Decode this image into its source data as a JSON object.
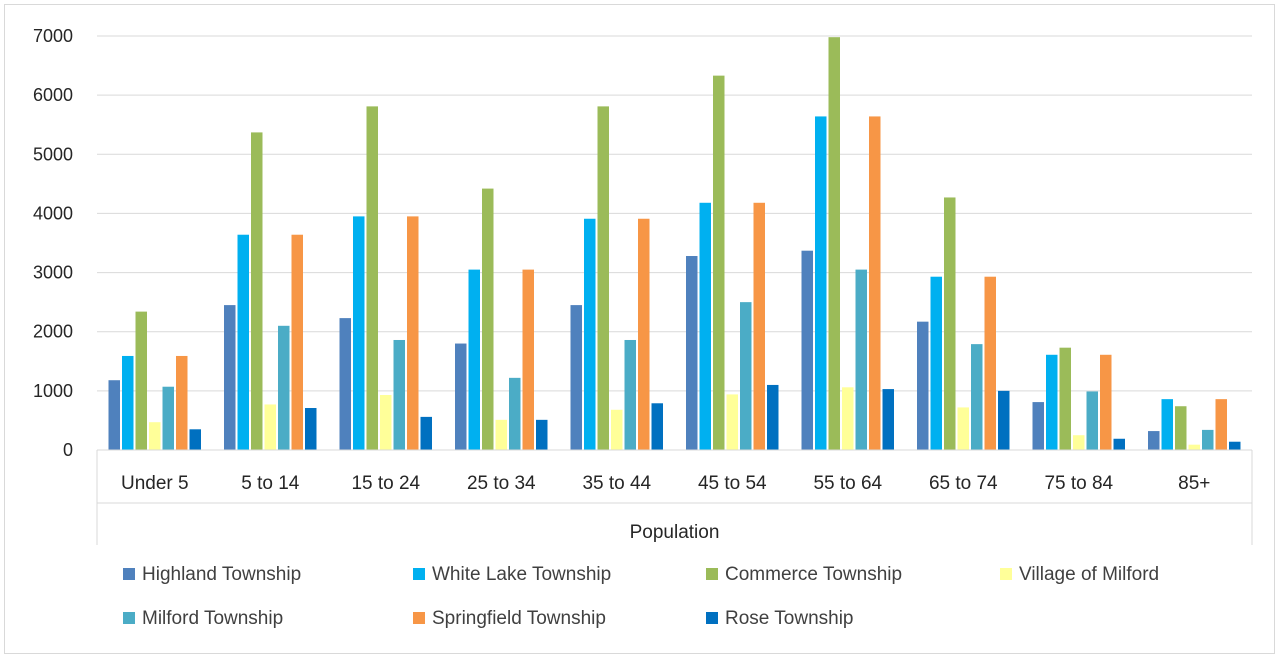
{
  "chart_data": {
    "type": "bar",
    "xlabel": "Population",
    "ylabel": "",
    "ylim": [
      0,
      7000
    ],
    "yticks": [
      0,
      1000,
      2000,
      3000,
      4000,
      5000,
      6000,
      7000
    ],
    "ytick_labels": [
      "0",
      "1000",
      "2000",
      "3000",
      "4000",
      "5000",
      "6000",
      "7000"
    ],
    "grid": true,
    "legend_position": "bottom",
    "categories": [
      "Under 5",
      "5 to 14",
      "15 to 24",
      "25 to 34",
      "35 to 44",
      "45 to 54",
      "55 to 64",
      "65 to 74",
      "75 to 84",
      "85+"
    ],
    "series": [
      {
        "name": "Highland Township",
        "color": "#4f81bd",
        "values": [
          1180,
          2450,
          2230,
          1800,
          2450,
          3280,
          3370,
          2170,
          810,
          320
        ]
      },
      {
        "name": "White Lake Township",
        "color": "#00b0f0",
        "values": [
          1590,
          3640,
          3950,
          3050,
          3910,
          4180,
          5640,
          2930,
          1610,
          860
        ]
      },
      {
        "name": "Commerce Township",
        "color": "#9bbb59",
        "values": [
          2340,
          5370,
          5810,
          4420,
          5810,
          6330,
          6980,
          4270,
          1730,
          740
        ]
      },
      {
        "name": "Village of Milford",
        "color": "#ffff99",
        "values": [
          470,
          770,
          930,
          510,
          680,
          940,
          1060,
          720,
          250,
          90
        ]
      },
      {
        "name": "Milford Township",
        "color": "#4bacc6",
        "values": [
          1070,
          2100,
          1860,
          1220,
          1860,
          2500,
          3050,
          1790,
          990,
          340
        ]
      },
      {
        "name": "Springfield Township",
        "color": "#f79646",
        "values": [
          1590,
          3640,
          3950,
          3050,
          3910,
          4180,
          5640,
          2930,
          1610,
          860
        ]
      },
      {
        "name": "Rose Township",
        "color": "#0070c0",
        "values": [
          350,
          710,
          560,
          510,
          790,
          1100,
          1030,
          1000,
          190,
          140
        ]
      }
    ]
  }
}
